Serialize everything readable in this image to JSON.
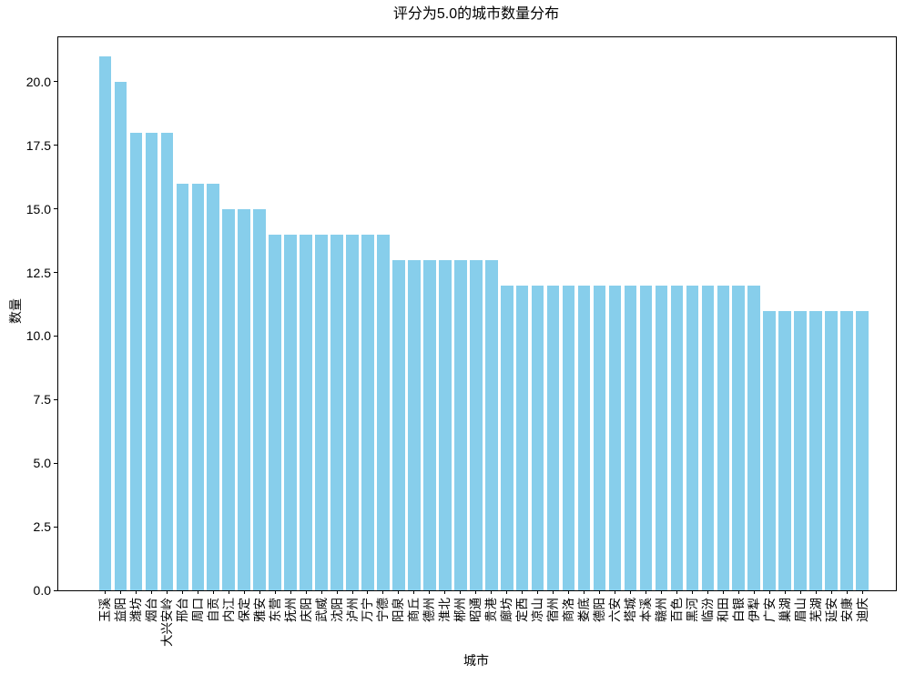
{
  "chart_data": {
    "type": "bar",
    "title": "评分为5.0的城市数量分布",
    "xlabel": "城市",
    "ylabel": "数量",
    "categories": [
      "玉溪",
      "益阳",
      "潍坊",
      "烟台",
      "大兴安岭",
      "邢台",
      "周口",
      "自贡",
      "内江",
      "保定",
      "雅安",
      "东营",
      "抚州",
      "庆阳",
      "武威",
      "沈阳",
      "泸州",
      "万宁",
      "宁德",
      "阳泉",
      "商丘",
      "德州",
      "淮北",
      "郴州",
      "昭通",
      "贵港",
      "廊坊",
      "定西",
      "凉山",
      "宿州",
      "商洛",
      "娄底",
      "德阳",
      "六安",
      "塔城",
      "本溪",
      "赣州",
      "百色",
      "黑河",
      "临汾",
      "和田",
      "白银",
      "伊犁",
      "广安",
      "巢湖",
      "眉山",
      "芜湖",
      "延安",
      "安康",
      "迪庆"
    ],
    "values": [
      21,
      20,
      18,
      18,
      18,
      16,
      16,
      16,
      15,
      15,
      15,
      14,
      14,
      14,
      14,
      14,
      14,
      14,
      14,
      13,
      13,
      13,
      13,
      13,
      13,
      13,
      12,
      12,
      12,
      12,
      12,
      12,
      12,
      12,
      12,
      12,
      12,
      12,
      12,
      12,
      12,
      12,
      12,
      11,
      11,
      11,
      11,
      11,
      11,
      11
    ],
    "ylim": [
      0,
      21.75
    ],
    "yticks": [
      0.0,
      2.5,
      5.0,
      7.5,
      10.0,
      12.5,
      15.0,
      17.5,
      20.0
    ],
    "ytick_labels": [
      "0.0",
      "2.5",
      "5.0",
      "7.5",
      "10.0",
      "12.5",
      "15.0",
      "17.5",
      "20.0"
    ],
    "bar_color": "#87CEEB",
    "grid": false,
    "legend": "none"
  }
}
